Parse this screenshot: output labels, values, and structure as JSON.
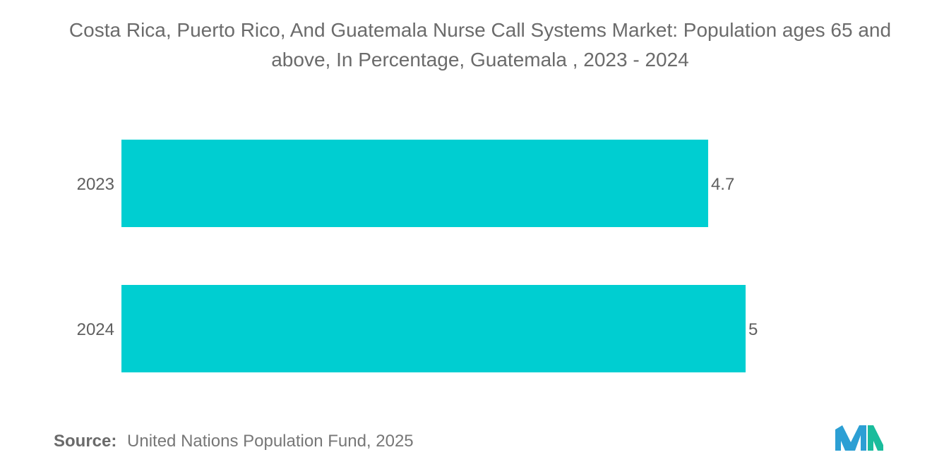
{
  "chart_data": {
    "type": "bar",
    "orientation": "horizontal",
    "title": "Costa Rica, Puerto Rico, And Guatemala Nurse Call Systems Market: Population ages 65 and above, In Percentage, Guatemala , 2023 - 2024",
    "categories": [
      "2023",
      "2024"
    ],
    "values": [
      4.7,
      5
    ],
    "value_labels": [
      "4.7",
      "5"
    ],
    "xlabel": "",
    "ylabel": "",
    "xlim": [
      0,
      5
    ],
    "grid": false,
    "legend": "none",
    "bar_color": "#00CED1"
  },
  "footer": {
    "source_label": "Source:",
    "source_text": "United Nations Population Fund, 2025"
  },
  "brand": {
    "logo_icon": "mordor-intelligence-logo-icon",
    "logo_color_left": "#2c9fd4",
    "logo_color_right": "#1abc9c"
  }
}
